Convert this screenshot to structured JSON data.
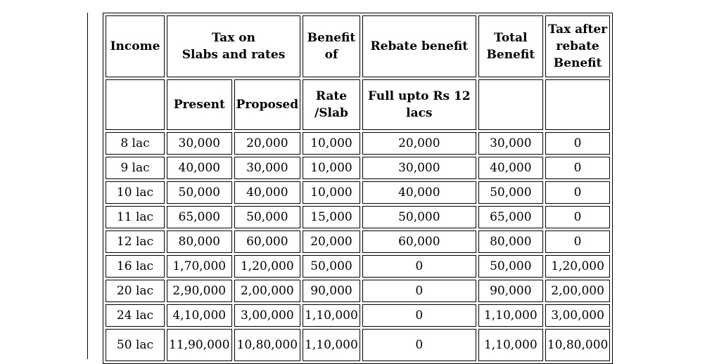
{
  "table": {
    "headers": {
      "income": "Income",
      "tax_on": [
        "Tax on",
        "Slabs and rates"
      ],
      "benefit_of": [
        "Benefit",
        "of"
      ],
      "rebate_benefit": "Rebate benefit",
      "total_benefit": [
        "Total",
        "Benefit"
      ],
      "tax_after": [
        "Tax after",
        "rebate",
        "Benefit"
      ],
      "present": "Present",
      "proposed": "Proposed",
      "rate_slab": [
        "Rate",
        "/Slab"
      ],
      "full_upto": [
        "Full upto Rs 12",
        "lacs"
      ]
    },
    "rows": [
      {
        "income": "8 lac",
        "present": "30,000",
        "proposed": "20,000",
        "rate_slab": "10,000",
        "rebate": "20,000",
        "total": "30,000",
        "after": "0"
      },
      {
        "income": "9 lac",
        "present": "40,000",
        "proposed": "30,000",
        "rate_slab": "10,000",
        "rebate": "30,000",
        "total": "40,000",
        "after": "0"
      },
      {
        "income": "10 lac",
        "present": "50,000",
        "proposed": "40,000",
        "rate_slab": "10,000",
        "rebate": "40,000",
        "total": "50,000",
        "after": "0"
      },
      {
        "income": "11 lac",
        "present": "65,000",
        "proposed": "50,000",
        "rate_slab": "15,000",
        "rebate": "50,000",
        "total": "65,000",
        "after": "0"
      },
      {
        "income": "12 lac",
        "present": "80,000",
        "proposed": "60,000",
        "rate_slab": "20,000",
        "rebate": "60,000",
        "total": "80,000",
        "after": "0"
      },
      {
        "income": "16 lac",
        "present": "1,70,000",
        "proposed": "1,20,000",
        "rate_slab": "50,000",
        "rebate": "0",
        "total": "50,000",
        "after": "1,20,000"
      },
      {
        "income": "20 lac",
        "present": "2,90,000",
        "proposed": "2,00,000",
        "rate_slab": "90,000",
        "rebate": "0",
        "total": "90,000",
        "after": "2,00,000"
      },
      {
        "income": "24 lac",
        "present": "4,10,000",
        "proposed": "3,00,000",
        "rate_slab": "1,10,000",
        "rebate": "0",
        "total": "1,10,000",
        "after": "3,00,000"
      },
      {
        "income": "50 lac",
        "present": "11,90,000",
        "proposed": "10,80,000",
        "rate_slab": "1,10,000",
        "rebate": "0",
        "total": "1,10,000",
        "after": "10,80,000"
      }
    ]
  }
}
